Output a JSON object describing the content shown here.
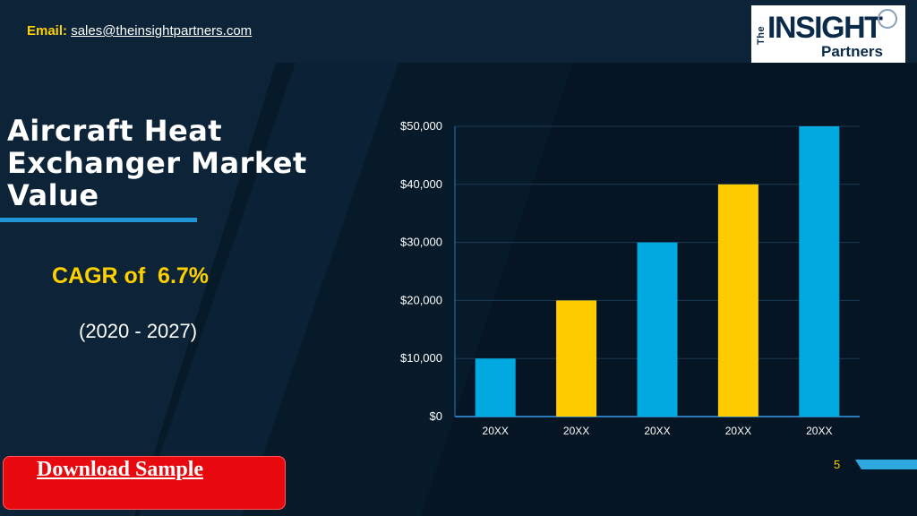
{
  "header": {
    "email_label": "Email:",
    "email_address": "sales@theinsightpartners.com",
    "logo": {
      "the": "The",
      "insight": "INSIGHT",
      "partners": "Partners"
    }
  },
  "main": {
    "title": "Aircraft Heat Exchanger Market Value",
    "cagr": "CAGR of  6.7%",
    "period": "(2020 - 2027)",
    "download_label": "Download Sample",
    "page_number": "5"
  },
  "colors": {
    "background": "#071a29",
    "accent_blue": "#00a9e0",
    "accent_yellow": "#ffcc00",
    "download_red": "#e8090f"
  },
  "chart_data": {
    "type": "bar",
    "categories": [
      "20XX",
      "20XX",
      "20XX",
      "20XX",
      "20XX"
    ],
    "values": [
      10000,
      20000,
      30000,
      40000,
      50000
    ],
    "bar_colors": [
      "#00a9e0",
      "#ffcc00",
      "#00a9e0",
      "#ffcc00",
      "#00a9e0"
    ],
    "y_ticks": [
      "$0",
      "$10,000",
      "$20,000",
      "$30,000",
      "$40,000",
      "$50,000"
    ],
    "ylim": [
      0,
      50000
    ],
    "grid": true,
    "title": "",
    "xlabel": "",
    "ylabel": ""
  }
}
